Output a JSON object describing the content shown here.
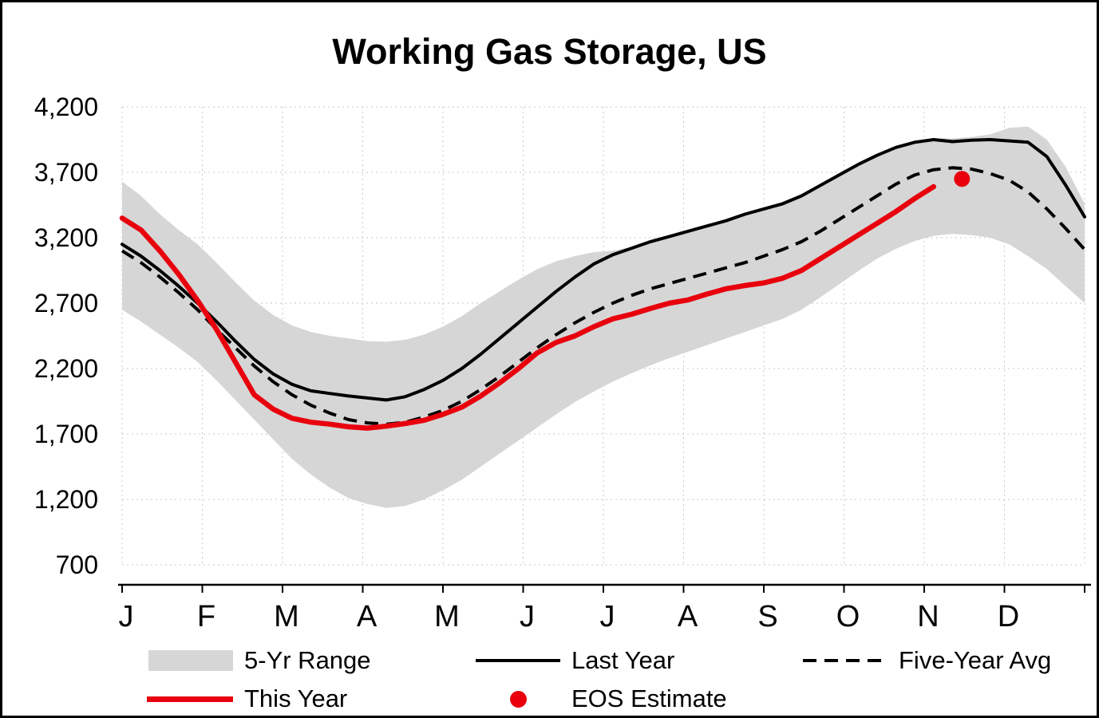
{
  "title": "Working Gas Storage, US",
  "legend": {
    "range_label": "5-Yr Range",
    "last_year_label": "Last Year",
    "five_year_label": "Five-Year Avg",
    "this_year_label": "This Year",
    "eos_label": "EOS Estimate"
  },
  "chart_data": {
    "type": "line",
    "title": "Working Gas Storage, US",
    "ylabel": "",
    "xlabel": "",
    "ylim": [
      700,
      4200
    ],
    "grid": true,
    "legend_position": "bottom",
    "y_ticks": [
      "4,200",
      "3,700",
      "3,200",
      "2,700",
      "2,200",
      "1,700",
      "1,200",
      "700"
    ],
    "y_tick_values": [
      4200,
      3700,
      3200,
      2700,
      2200,
      1700,
      1200,
      700
    ],
    "x_months": [
      "J",
      "F",
      "M",
      "A",
      "M",
      "J",
      "J",
      "A",
      "S",
      "O",
      "N",
      "D"
    ],
    "x_unit": "week-of-year",
    "weeks": 52,
    "series": [
      {
        "name": "5-Yr Range",
        "type": "band",
        "color": "#d6d6d6",
        "upper": [
          3630,
          3520,
          3380,
          3260,
          3150,
          3010,
          2860,
          2720,
          2610,
          2530,
          2480,
          2450,
          2430,
          2410,
          2405,
          2420,
          2460,
          2520,
          2600,
          2700,
          2790,
          2880,
          2960,
          3020,
          3060,
          3090,
          3100,
          3130,
          3180,
          3220,
          3260,
          3300,
          3340,
          3390,
          3430,
          3470,
          3530,
          3610,
          3690,
          3770,
          3840,
          3900,
          3940,
          3960,
          3960,
          3970,
          3990,
          4040,
          4050,
          3950,
          3740,
          3460
        ],
        "lower": [
          2650,
          2560,
          2460,
          2360,
          2250,
          2110,
          1960,
          1810,
          1660,
          1510,
          1390,
          1290,
          1210,
          1165,
          1135,
          1150,
          1200,
          1270,
          1350,
          1450,
          1550,
          1650,
          1750,
          1850,
          1945,
          2025,
          2100,
          2165,
          2225,
          2280,
          2330,
          2380,
          2430,
          2480,
          2530,
          2580,
          2650,
          2745,
          2845,
          2945,
          3040,
          3115,
          3175,
          3215,
          3230,
          3220,
          3200,
          3150,
          3060,
          2960,
          2830,
          2700
        ]
      },
      {
        "name": "Last Year",
        "type": "line",
        "style": "solid",
        "color": "#000000",
        "start_week": 0,
        "values": [
          3150,
          3060,
          2950,
          2830,
          2700,
          2560,
          2410,
          2270,
          2160,
          2080,
          2030,
          2010,
          1990,
          1975,
          1960,
          1985,
          2040,
          2110,
          2200,
          2310,
          2430,
          2550,
          2670,
          2790,
          2900,
          3000,
          3070,
          3120,
          3170,
          3210,
          3250,
          3290,
          3330,
          3380,
          3420,
          3460,
          3520,
          3600,
          3680,
          3760,
          3830,
          3890,
          3930,
          3950,
          3935,
          3945,
          3950,
          3940,
          3930,
          3820,
          3600,
          3360
        ]
      },
      {
        "name": "Five-Year Avg",
        "type": "line",
        "style": "dashed",
        "color": "#000000",
        "start_week": 0,
        "values": [
          3100,
          3010,
          2900,
          2780,
          2650,
          2500,
          2360,
          2220,
          2100,
          2000,
          1920,
          1860,
          1810,
          1785,
          1775,
          1790,
          1830,
          1880,
          1950,
          2040,
          2140,
          2250,
          2360,
          2460,
          2550,
          2630,
          2700,
          2760,
          2810,
          2850,
          2890,
          2930,
          2970,
          3010,
          3060,
          3110,
          3170,
          3250,
          3340,
          3430,
          3520,
          3610,
          3680,
          3720,
          3735,
          3725,
          3690,
          3640,
          3550,
          3420,
          3270,
          3110
        ]
      },
      {
        "name": "This Year",
        "type": "line",
        "style": "solid-thick",
        "color": "#e8000d",
        "start_week": 0,
        "values": [
          3350,
          3260,
          3100,
          2920,
          2720,
          2500,
          2250,
          2000,
          1890,
          1820,
          1790,
          1775,
          1755,
          1745,
          1760,
          1780,
          1805,
          1850,
          1905,
          1990,
          2090,
          2200,
          2320,
          2400,
          2450,
          2520,
          2580,
          2615,
          2660,
          2700,
          2725,
          2770,
          2810,
          2835,
          2855,
          2890,
          2950,
          3040,
          3130,
          3220,
          3310,
          3400,
          3500,
          3590
        ]
      },
      {
        "name": "EOS Estimate",
        "type": "point",
        "color": "#e8000d",
        "x_week": 44.5,
        "value": 3650
      }
    ]
  }
}
